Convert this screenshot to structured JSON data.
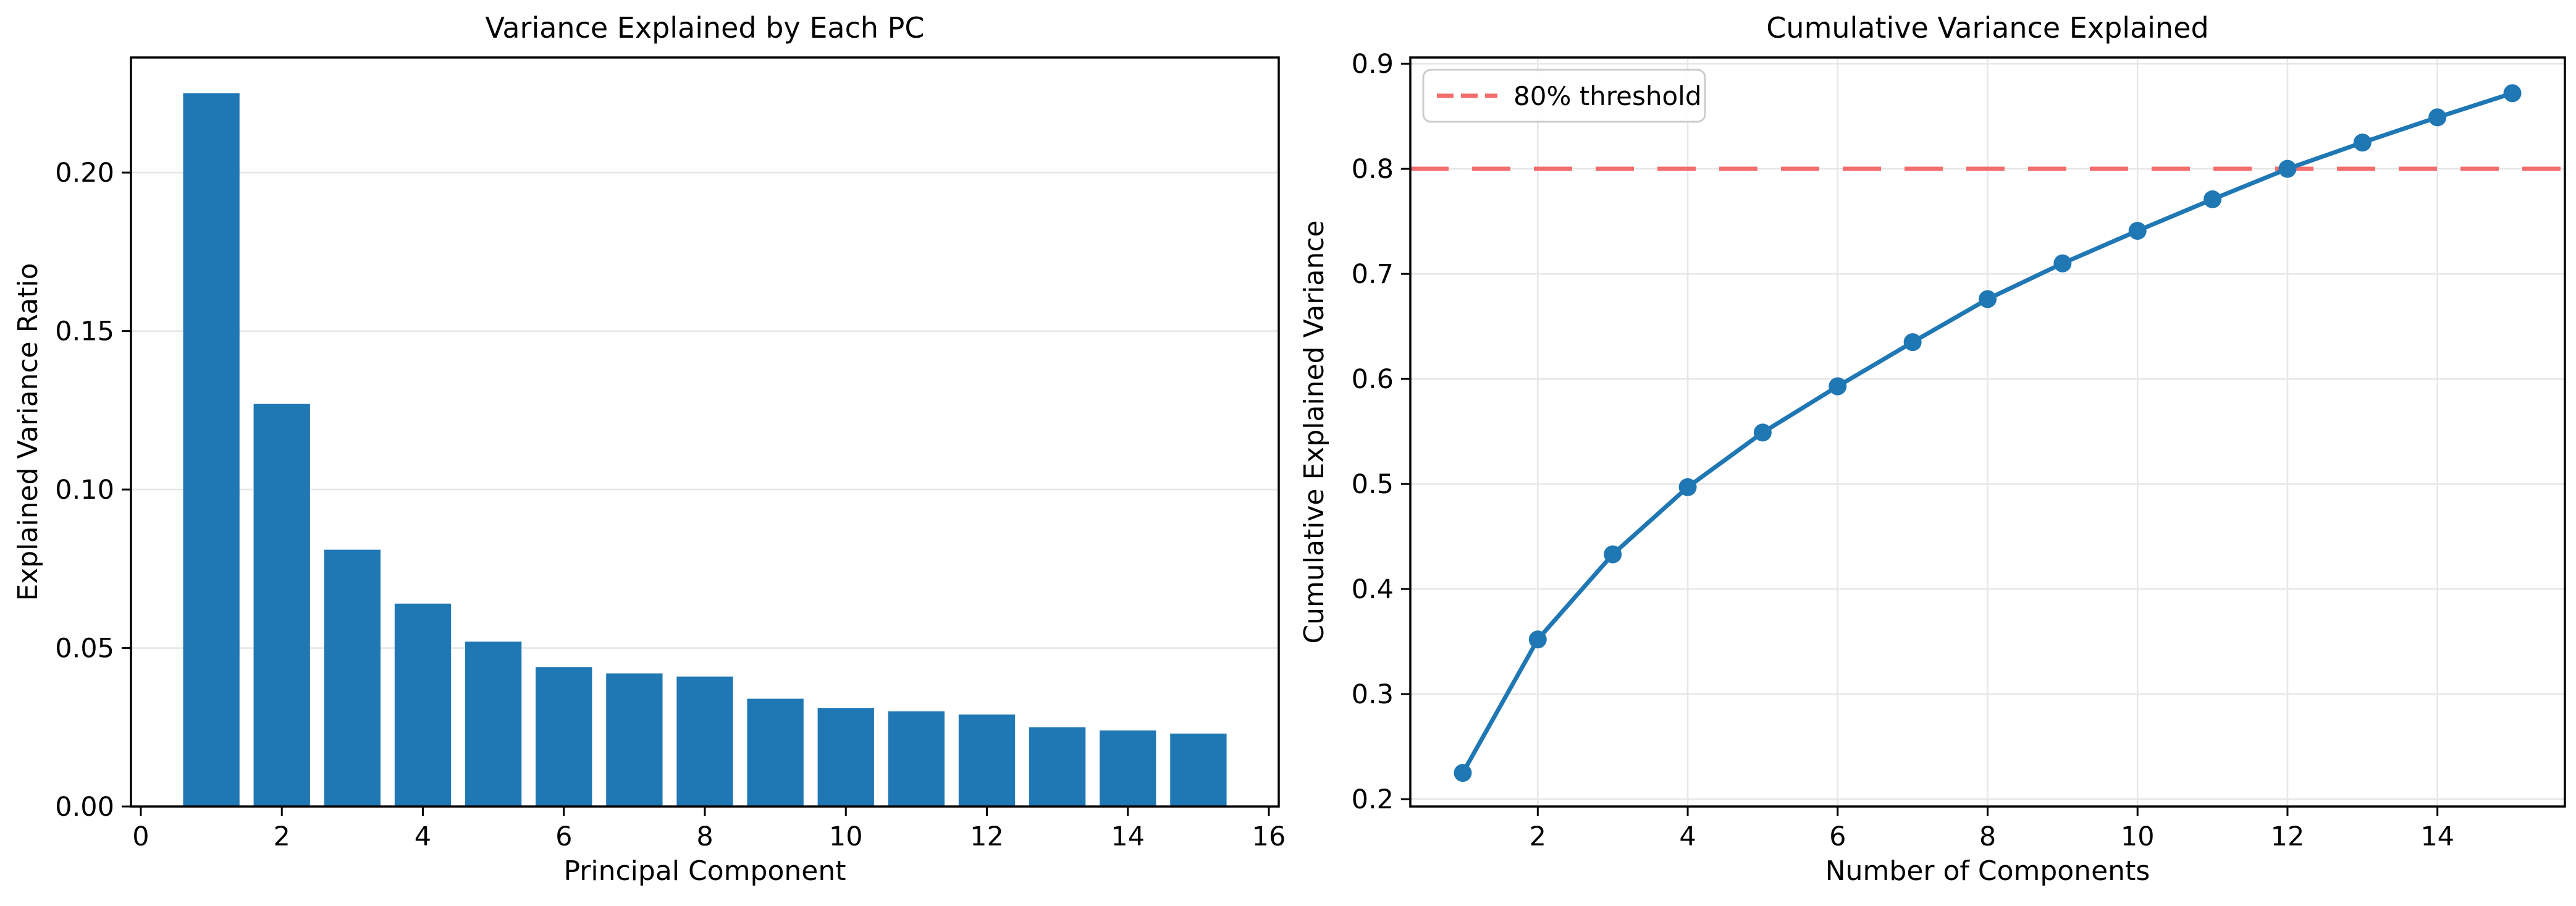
{
  "figure": {
    "background": "#ffffff",
    "accent_blue": "#1f77b4",
    "threshold_red": "#f26d6d",
    "grid_color": "#e7e7e7",
    "spine_color": "#000000",
    "legend_border_color": "#cccccc",
    "text_color": "#000000"
  },
  "chart_data": [
    {
      "type": "bar",
      "title": "Variance Explained by Each PC",
      "xlabel": "Principal Component",
      "ylabel": "Explained Variance Ratio",
      "categories": [
        1,
        2,
        3,
        4,
        5,
        6,
        7,
        8,
        9,
        10,
        11,
        12,
        13,
        14,
        15
      ],
      "values": [
        0.225,
        0.127,
        0.081,
        0.064,
        0.052,
        0.044,
        0.042,
        0.041,
        0.034,
        0.031,
        0.03,
        0.029,
        0.025,
        0.024,
        0.023
      ],
      "bar_color": "#1f77b4",
      "xticks": [
        0,
        2,
        4,
        6,
        8,
        10,
        12,
        14,
        16
      ],
      "ytick_values": [
        0.0,
        0.05,
        0.1,
        0.15,
        0.2
      ],
      "ytick_labels": [
        "0.00",
        "0.05",
        "0.10",
        "0.15",
        "0.20"
      ],
      "xlim": [
        -0.14,
        16.14
      ],
      "ylim": [
        0,
        0.2363
      ],
      "grid": "horizontal-only",
      "legend": null
    },
    {
      "type": "line",
      "title": "Cumulative Variance Explained",
      "xlabel": "Number of Components",
      "ylabel": "Cumulative Explained Variance",
      "x": [
        1,
        2,
        3,
        4,
        5,
        6,
        7,
        8,
        9,
        10,
        11,
        12,
        13,
        14,
        15
      ],
      "y": [
        0.225,
        0.352,
        0.433,
        0.497,
        0.549,
        0.593,
        0.635,
        0.676,
        0.71,
        0.741,
        0.771,
        0.8,
        0.825,
        0.849,
        0.872
      ],
      "line_color": "#1f77b4",
      "marker": "circle",
      "xticks": [
        2,
        4,
        6,
        8,
        10,
        12,
        14
      ],
      "ytick_values": [
        0.2,
        0.3,
        0.4,
        0.5,
        0.6,
        0.7,
        0.8,
        0.9
      ],
      "ytick_labels": [
        "0.2",
        "0.3",
        "0.4",
        "0.5",
        "0.6",
        "0.7",
        "0.8",
        "0.9"
      ],
      "xlim": [
        0.3,
        15.7
      ],
      "ylim": [
        0.193,
        0.906
      ],
      "grid": "both",
      "threshold": {
        "value": 0.8,
        "label": "80% threshold",
        "color": "#f26d6d",
        "linestyle": "dashed"
      },
      "legend": {
        "position": "upper-left",
        "entries": [
          {
            "label": "80% threshold",
            "color": "#f26d6d",
            "linestyle": "dashed"
          }
        ]
      }
    }
  ]
}
